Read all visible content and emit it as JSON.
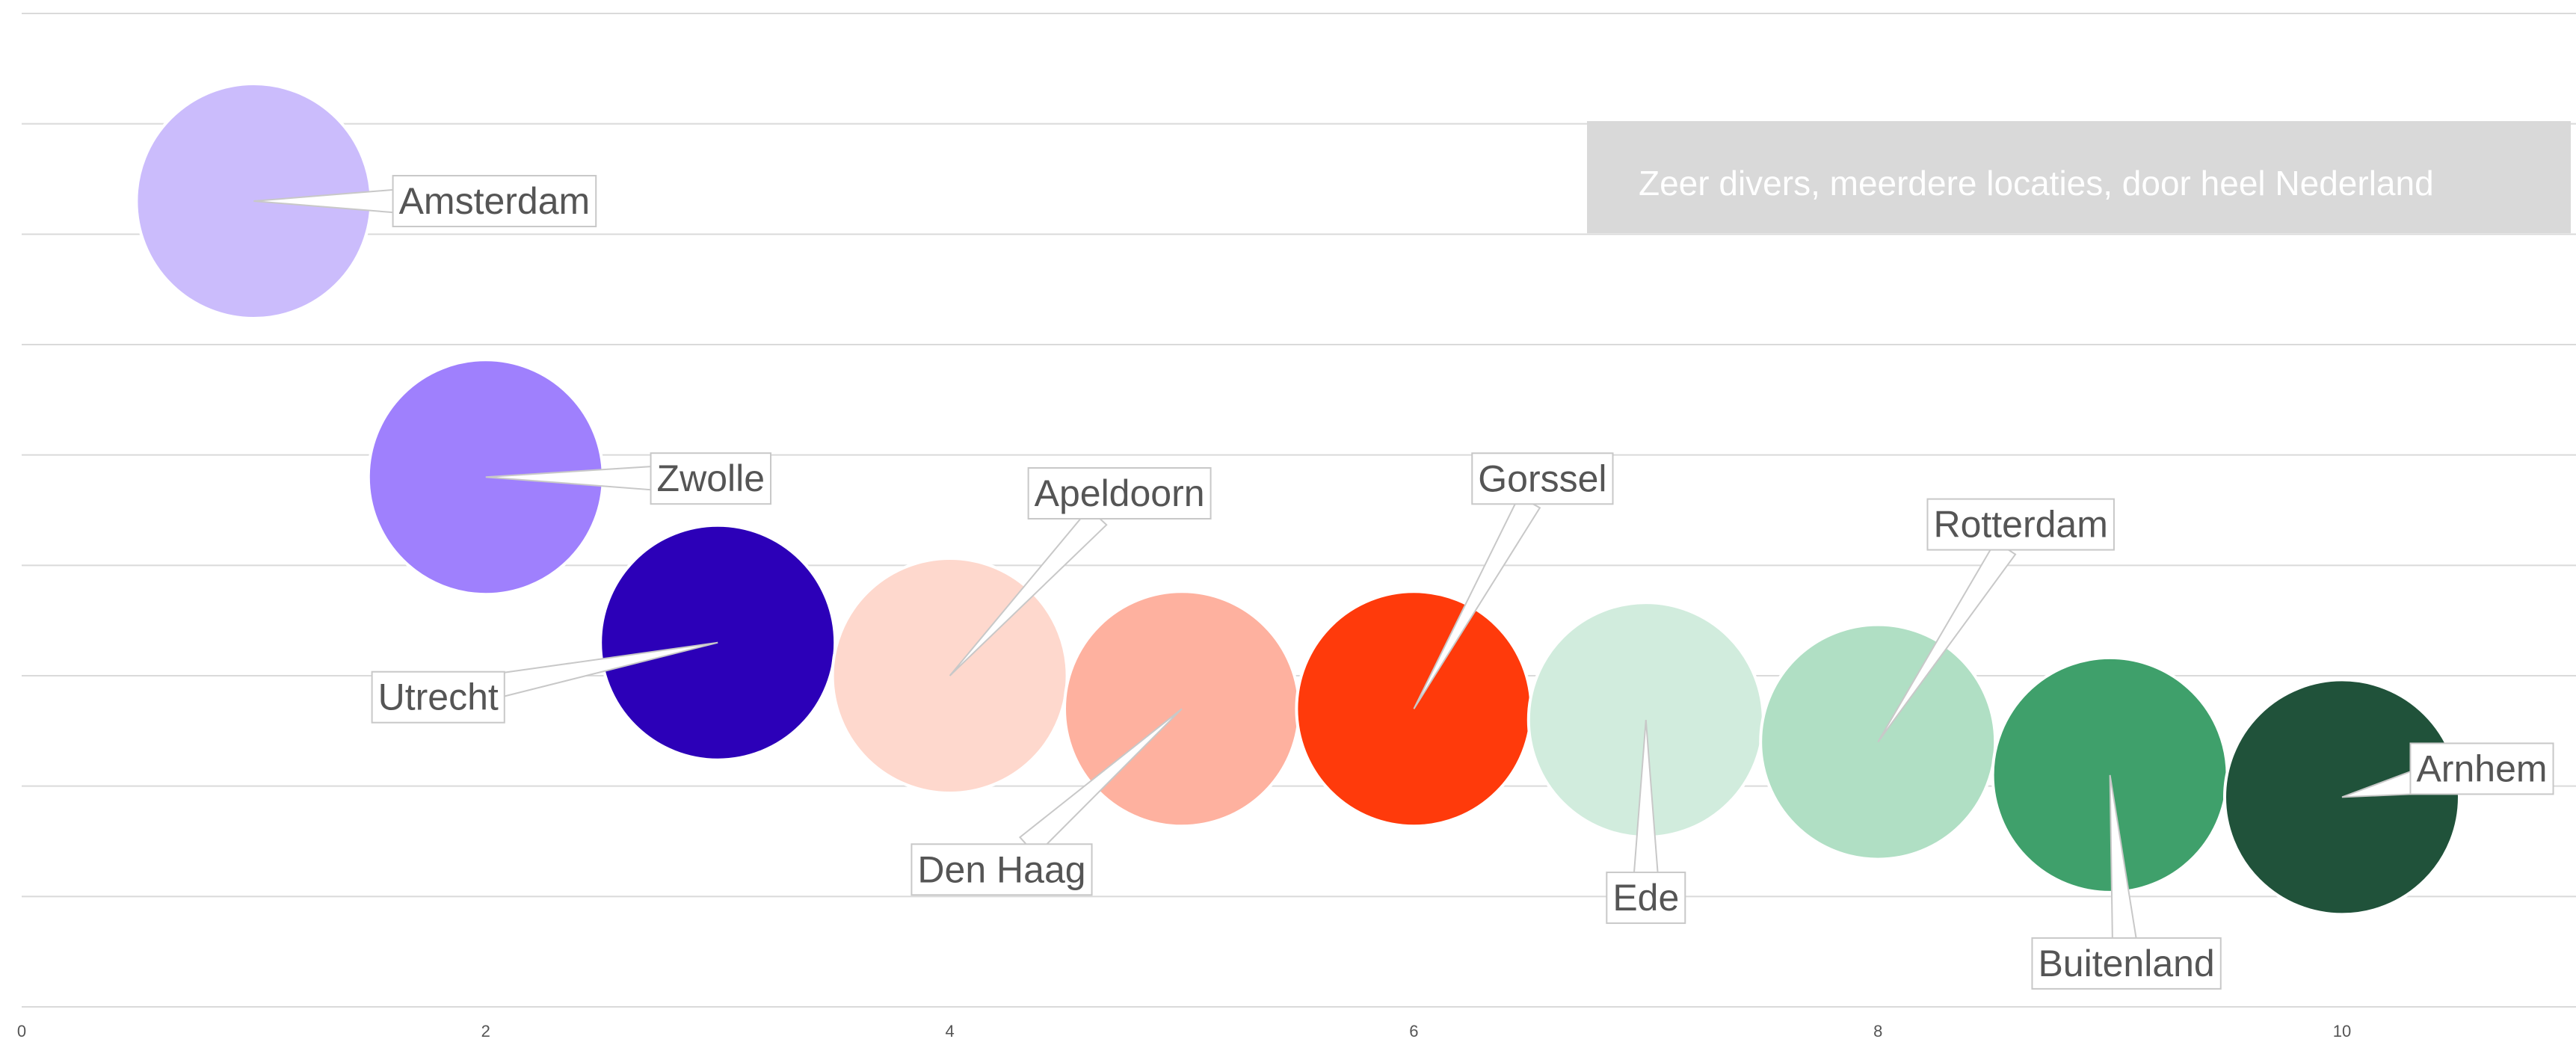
{
  "chart_data": {
    "type": "scatter",
    "title": "",
    "xlabel": "",
    "ylabel": "",
    "xlim": [
      0,
      11
    ],
    "ylim": [
      0,
      9
    ],
    "x_ticks": [
      "0",
      "2",
      "4",
      "6",
      "8",
      "10"
    ],
    "grid": true,
    "points": [
      {
        "label": "Amsterdam",
        "x": 1,
        "y": 7.3,
        "color": "#cbbcfc"
      },
      {
        "label": "Zwolle",
        "x": 2,
        "y": 4.8,
        "color": "#9f80fd"
      },
      {
        "label": "Utrecht",
        "x": 3,
        "y": 3.3,
        "color": "#2c00b8"
      },
      {
        "label": "Apeldoorn",
        "x": 4,
        "y": 3.0,
        "color": "#fed8cd"
      },
      {
        "label": "Den Haag",
        "x": 5,
        "y": 2.7,
        "color": "#feb19f"
      },
      {
        "label": "Gorssel",
        "x": 6,
        "y": 2.7,
        "color": "#ff3a0b"
      },
      {
        "label": "Ede",
        "x": 7,
        "y": 2.6,
        "color": "#d1ecdd"
      },
      {
        "label": "Rotterdam",
        "x": 8,
        "y": 2.4,
        "color": "#b0dfc4"
      },
      {
        "label": "Buitenland",
        "x": 9,
        "y": 2.1,
        "color": "#3fa06b"
      },
      {
        "label": "Arnhem",
        "x": 10,
        "y": 1.9,
        "color": "#20523a"
      }
    ],
    "annotations": [
      {
        "text": "Zeer divers, meerdere locaties, door heel Nederland"
      }
    ]
  }
}
